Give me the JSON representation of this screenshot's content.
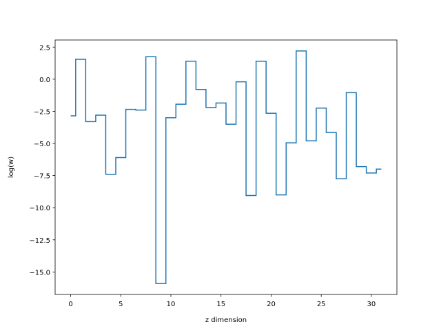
{
  "chart_data": {
    "type": "line",
    "drawstyle": "steps-mid",
    "title": "",
    "xlabel": "z dimension",
    "ylabel": "log(w)",
    "xlim": [
      -1.55,
      32.55
    ],
    "ylim": [
      -16.75,
      3.05
    ],
    "xticks": [
      0,
      5,
      10,
      15,
      20,
      25,
      30
    ],
    "xtick_labels": [
      "0",
      "5",
      "10",
      "15",
      "20",
      "25",
      "30"
    ],
    "yticks": [
      2.5,
      0.0,
      -2.5,
      -5.0,
      -7.5,
      -10.0,
      -12.5,
      -15.0
    ],
    "ytick_labels": [
      "2.5",
      "0.0",
      "−2.5",
      "−5.0",
      "−7.5",
      "−10.0",
      "−12.5",
      "−15.0"
    ],
    "grid": false,
    "legend": "none",
    "series": [
      {
        "color": "#1f77b4",
        "x": [
          0,
          1,
          2,
          3,
          4,
          5,
          6,
          7,
          8,
          9,
          10,
          11,
          12,
          13,
          14,
          15,
          16,
          17,
          18,
          19,
          20,
          21,
          22,
          23,
          24,
          25,
          26,
          27,
          28,
          29,
          30,
          31
        ],
        "y": [
          -2.85,
          1.55,
          -3.3,
          -2.8,
          -7.4,
          -6.1,
          -2.35,
          -2.4,
          1.75,
          -15.9,
          -3.0,
          -1.95,
          1.4,
          -0.8,
          -2.2,
          -1.85,
          -3.5,
          -0.2,
          -9.05,
          1.4,
          -2.65,
          -9.0,
          -4.95,
          2.2,
          -4.8,
          -2.25,
          -4.15,
          -7.75,
          -1.05,
          -6.8,
          -7.3,
          -7.0
        ]
      }
    ]
  }
}
